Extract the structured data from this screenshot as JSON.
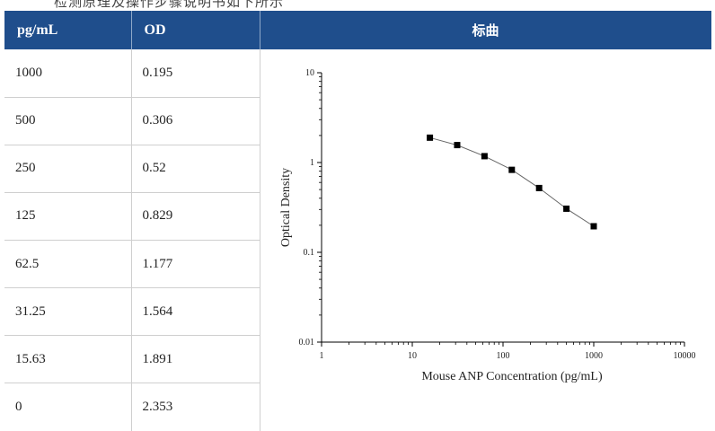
{
  "page": {
    "top_cut_text": "检测原理及操作步骤说明书如下所示"
  },
  "table": {
    "headers": [
      "pg/mL",
      "OD",
      "标曲"
    ],
    "rows": [
      [
        "1000",
        "0.195"
      ],
      [
        "500",
        "0.306"
      ],
      [
        "250",
        "0.52"
      ],
      [
        "125",
        "0.829"
      ],
      [
        "62.5",
        "1.177"
      ],
      [
        "31.25",
        "1.564"
      ],
      [
        "15.63",
        "1.891"
      ],
      [
        "0",
        "2.353"
      ]
    ]
  },
  "chart_data": {
    "type": "scatter",
    "x_scale": "log",
    "y_scale": "log",
    "xlabel": "Mouse ANP Concentration (pg/mL)",
    "ylabel": "Optical Density",
    "xlim": [
      1,
      10000
    ],
    "ylim": [
      0.01,
      10
    ],
    "x_ticks": [
      "1",
      "10",
      "100",
      "1000",
      "10000"
    ],
    "y_ticks": [
      "10",
      "1",
      "0.1",
      "0.01"
    ],
    "series": [
      {
        "x": [
          15.63,
          31.25,
          62.5,
          125,
          250,
          500,
          1000
        ],
        "y": [
          1.891,
          1.564,
          1.177,
          0.829,
          0.52,
          0.306,
          0.195
        ]
      }
    ],
    "marker_color": "#000000",
    "line_color": "#666666"
  }
}
